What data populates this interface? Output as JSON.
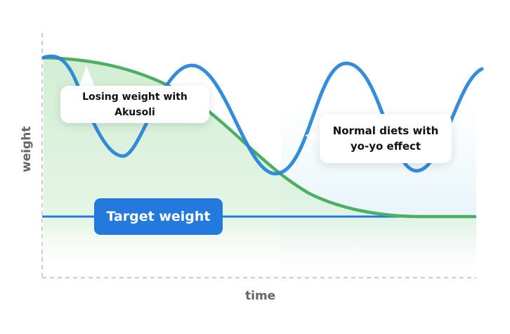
{
  "axes": {
    "y_label": "weight",
    "x_label": "time"
  },
  "callouts": {
    "akusoli": "Losing weight with Akusoli",
    "yoyo_line1": "Normal diets with",
    "yoyo_line2": "yo-yo effect"
  },
  "target": {
    "label": "Target weight"
  },
  "colors": {
    "green": "#4caf63",
    "blue": "#2a86d8",
    "target": "#2479dc",
    "fill": "#d4efd6"
  }
}
